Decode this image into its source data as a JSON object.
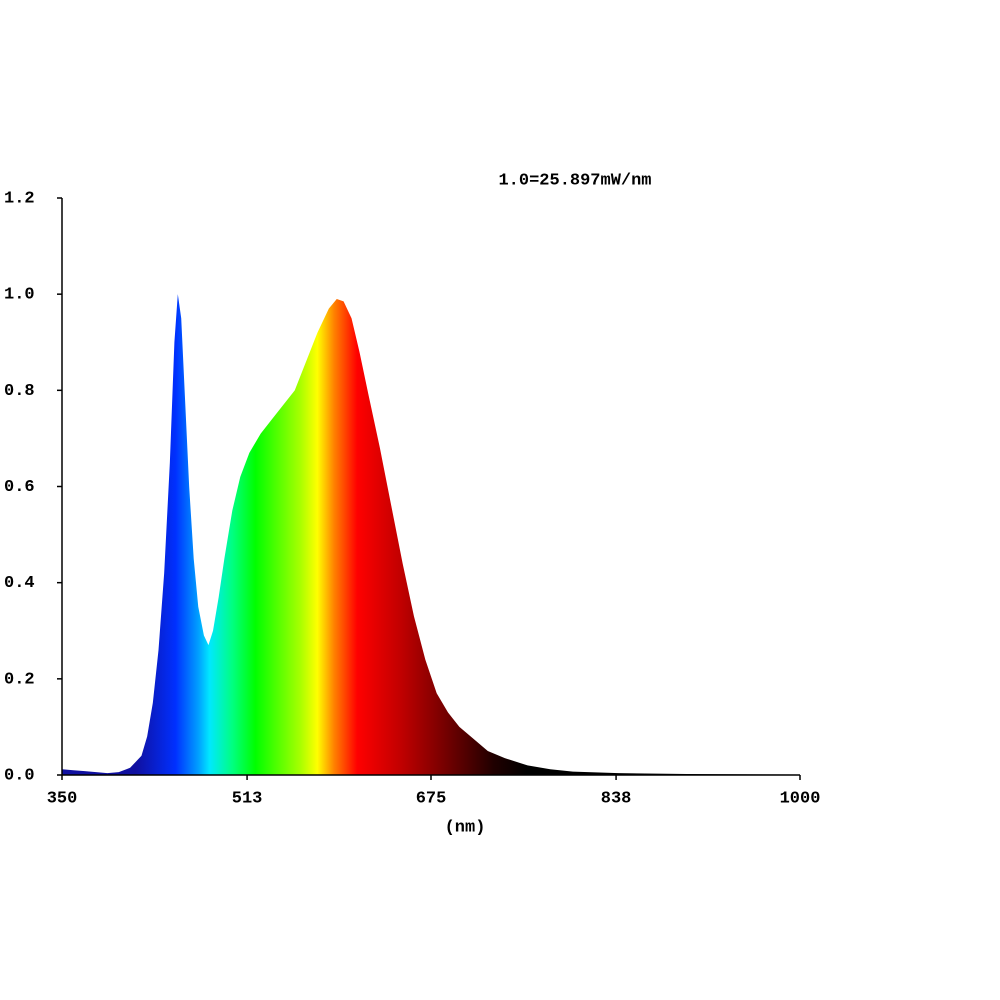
{
  "chart_data": {
    "type": "area",
    "annotation": "1.0=25.897mW/nm",
    "x_label": "(nm)",
    "x": [
      350,
      360,
      370,
      380,
      390,
      400,
      410,
      420,
      425,
      430,
      435,
      440,
      445,
      449,
      452,
      455,
      458,
      462,
      466,
      470,
      475,
      479,
      483,
      488,
      493,
      500,
      507,
      515,
      525,
      535,
      545,
      555,
      565,
      575,
      585,
      592,
      598,
      605,
      612,
      620,
      630,
      640,
      650,
      660,
      670,
      680,
      690,
      700,
      710,
      725,
      740,
      760,
      780,
      800,
      840,
      900,
      1000
    ],
    "values": [
      0.012,
      0.01,
      0.008,
      0.006,
      0.004,
      0.006,
      0.015,
      0.04,
      0.08,
      0.15,
      0.26,
      0.42,
      0.65,
      0.9,
      1.0,
      0.95,
      0.8,
      0.6,
      0.45,
      0.35,
      0.29,
      0.27,
      0.3,
      0.37,
      0.45,
      0.55,
      0.62,
      0.67,
      0.71,
      0.74,
      0.77,
      0.8,
      0.86,
      0.92,
      0.97,
      0.99,
      0.985,
      0.95,
      0.88,
      0.79,
      0.68,
      0.56,
      0.44,
      0.33,
      0.24,
      0.17,
      0.13,
      0.1,
      0.08,
      0.05,
      0.035,
      0.02,
      0.012,
      0.007,
      0.004,
      0.002,
      0.001
    ],
    "xlim": [
      350,
      1000
    ],
    "xticks": [
      350,
      513,
      675,
      838,
      1000
    ],
    "ylim": [
      0,
      1.2
    ],
    "yticks": [
      {
        "value": 0,
        "label": "0.0"
      },
      0.2,
      0.4,
      0.6,
      0.8,
      {
        "value": 1,
        "label": "1.0"
      },
      1.2
    ],
    "fill": "spectrum"
  }
}
